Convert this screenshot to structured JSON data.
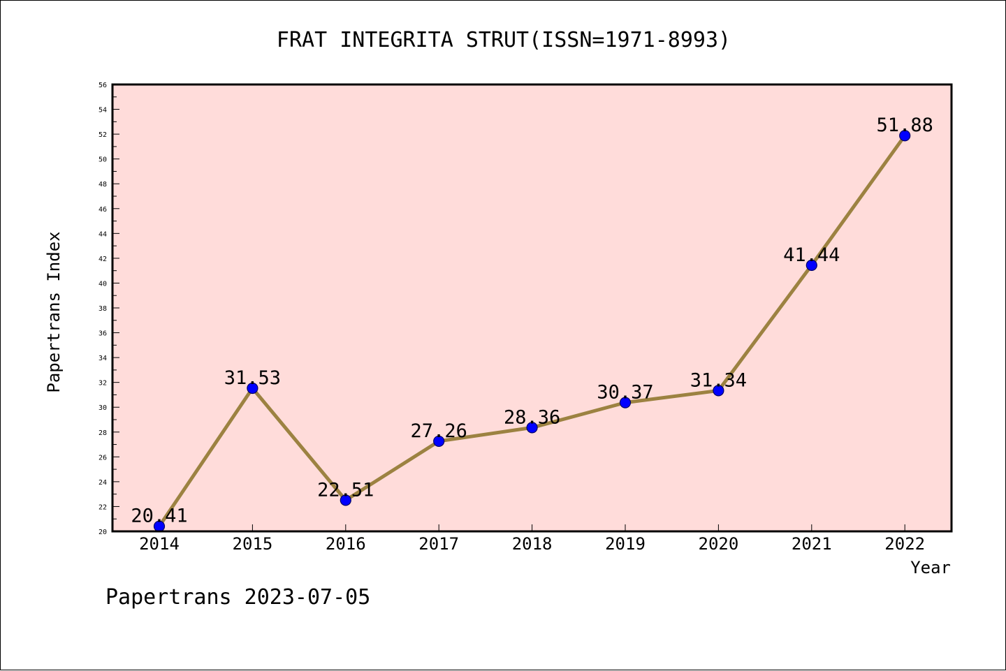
{
  "chart_data": {
    "type": "line",
    "title": "FRAT INTEGRITA STRUT(ISSN=1971-8993)",
    "xlabel": "Year",
    "ylabel": "Papertrans Index",
    "categories": [
      "2014",
      "2015",
      "2016",
      "2017",
      "2018",
      "2019",
      "2020",
      "2021",
      "2022"
    ],
    "values": [
      20.41,
      31.53,
      22.51,
      27.26,
      28.36,
      30.37,
      31.34,
      41.44,
      51.88
    ],
    "data_labels": [
      "20.41",
      "31.53",
      "22.51",
      "27.26",
      "28.36",
      "30.37",
      "31.34",
      "41.44",
      "51.88"
    ],
    "ylim": [
      20,
      56
    ],
    "yticks": [
      20,
      22,
      24,
      26,
      28,
      30,
      32,
      34,
      36,
      38,
      40,
      42,
      44,
      46,
      48,
      50,
      52,
      54,
      56
    ],
    "grid": false,
    "legend": "none",
    "colors": {
      "plot_background": "#FFDCDA",
      "line": "#9C8241",
      "marker": "#0000FF",
      "marker_edge": "#000066"
    }
  },
  "footer": "Papertrans 2023-07-05"
}
